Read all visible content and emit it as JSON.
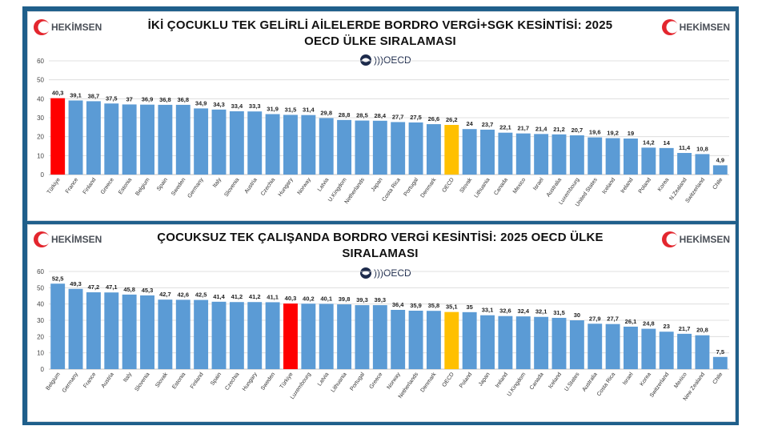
{
  "brand": {
    "logo_text": "HEKİMSEN",
    "oecd_text": "OECD",
    "bar_color": "#5b9bd5",
    "highlight_turkiye": "#ff0000",
    "highlight_oecd": "#ffc000"
  },
  "chart_data": [
    {
      "type": "bar",
      "title_line1": "İKİ ÇOCUKLU TEK GELİRLİ AİLELERDE BORDRO VERGİ+SGK KESİNTİSİ: 2025",
      "title_line2": "OECD ÜLKE SIRALAMASI",
      "ylim": [
        0,
        60
      ],
      "yticks": [
        0,
        10,
        20,
        30,
        40,
        50,
        60
      ],
      "grid": true,
      "categories": [
        "Türkiye",
        "France",
        "Finland",
        "Greece",
        "Estonia",
        "Belgium",
        "Spain",
        "Sweden",
        "Germany",
        "Italy",
        "Slovenia",
        "Austria",
        "Czechia",
        "Hungary",
        "Norway",
        "Latvia",
        "U.Kingdom",
        "Netherlands",
        "Japan",
        "Costa Rica",
        "Portugal",
        "Denmark",
        "OECD",
        "Slovak",
        "Lithuania",
        "Canada",
        "Mexico",
        "Israel",
        "Australia",
        "Luxembourg",
        "United States",
        "Iceland",
        "Ireland",
        "Poland",
        "Korea",
        "N.Zealand",
        "Switzerland",
        "Chile"
      ],
      "values": [
        40.3,
        39.1,
        38.7,
        37.5,
        37,
        36.9,
        36.8,
        36.8,
        34.9,
        34.3,
        33.4,
        33.3,
        31.9,
        31.5,
        31.4,
        29.8,
        28.8,
        28.5,
        28.4,
        27.7,
        27.5,
        26.6,
        26.2,
        24,
        23.7,
        22.1,
        21.7,
        21.4,
        21.2,
        20.7,
        19.6,
        19.2,
        19,
        14.2,
        14,
        11.4,
        10.8,
        4.9
      ],
      "value_labels": [
        "40,3",
        "39,1",
        "38,7",
        "37,5",
        "37",
        "36,9",
        "36,8",
        "36,8",
        "34,9",
        "34,3",
        "33,4",
        "33,3",
        "31,9",
        "31,5",
        "31,4",
        "29,8",
        "28,8",
        "28,5",
        "28,4",
        "27,7",
        "27,5",
        "26,6",
        "26,2",
        "24",
        "23,7",
        "22,1",
        "21,7",
        "21,4",
        "21,2",
        "20,7",
        "19,6",
        "19,2",
        "19",
        "14,2",
        "14",
        "11,4",
        "10,8",
        "4,9"
      ],
      "highlights": {
        "Türkiye": "#ff0000",
        "OECD": "#ffc000"
      }
    },
    {
      "type": "bar",
      "title_line1": "ÇOCUKSUZ TEK ÇALIŞANDA BORDRO VERGİ  KESİNTİSİ: 2025 OECD ÜLKE",
      "title_line2": "SIRALAMASI",
      "ylim": [
        0,
        60
      ],
      "yticks": [
        0,
        10,
        20,
        30,
        40,
        50,
        60
      ],
      "grid": true,
      "categories": [
        "Belgium",
        "Germany",
        "France",
        "Austria",
        "Italy",
        "Slovenia",
        "Slovak",
        "Estonia",
        "Finland",
        "Spain",
        "Czechia",
        "Hungary",
        "Sweden",
        "Türkiye",
        "Luxembourg",
        "Latvia",
        "Lithuania",
        "Portugal",
        "Greece",
        "Norway",
        "Netherlands",
        "Denmark",
        "OECD",
        "Poland",
        "Japan",
        "Ireland",
        "U.Kingdom",
        "Canada",
        "Iceland",
        "U.States",
        "Australia",
        "Costa Rica",
        "Israel",
        "Korea",
        "Switzerland",
        "Mexico",
        "New Zealand",
        "Chile"
      ],
      "values": [
        52.5,
        49.3,
        47.2,
        47.1,
        45.8,
        45.3,
        42.7,
        42.6,
        42.5,
        41.4,
        41.2,
        41.2,
        41.1,
        40.3,
        40.2,
        40.1,
        39.8,
        39.3,
        39.3,
        36.4,
        35.9,
        35.8,
        35.1,
        35,
        33.1,
        32.6,
        32.4,
        32.1,
        31.5,
        30,
        27.9,
        27.7,
        26.1,
        24.8,
        23,
        21.7,
        20.8,
        7.5
      ],
      "value_labels": [
        "52,5",
        "49,3",
        "47,2",
        "47,1",
        "45,8",
        "45,3",
        "42,7",
        "42,6",
        "42,5",
        "41,4",
        "41,2",
        "41,2",
        "41,1",
        "40,3",
        "40,2",
        "40,1",
        "39,8",
        "39,3",
        "39,3",
        "36,4",
        "35,9",
        "35,8",
        "35,1",
        "35",
        "33,1",
        "32,6",
        "32,4",
        "32,1",
        "31,5",
        "30",
        "27,9",
        "27,7",
        "26,1",
        "24,8",
        "23",
        "21,7",
        "20,8",
        "7,5"
      ],
      "highlights": {
        "Türkiye": "#ff0000",
        "OECD": "#ffc000"
      }
    }
  ]
}
